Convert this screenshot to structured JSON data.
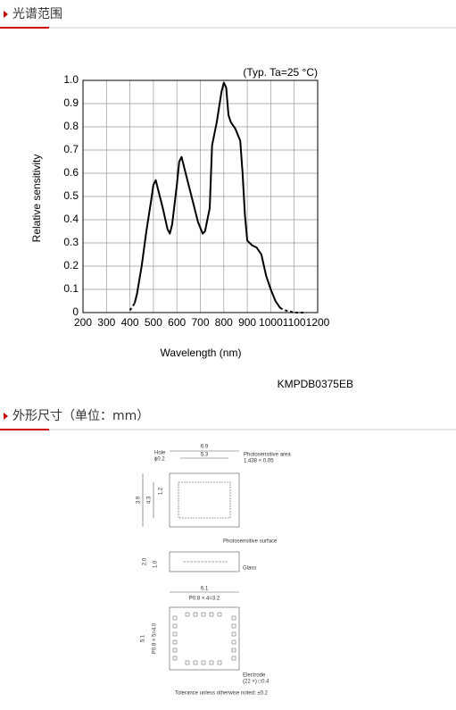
{
  "sections": [
    {
      "title": "光谱范围"
    },
    {
      "title": "外形尺寸（单位：mm）"
    }
  ],
  "chart_data": {
    "type": "line",
    "annotation": "(Typ. Ta=25 °C)",
    "x_label": "Wavelength (nm)",
    "y_label": "Relative sensitivity",
    "code": "KMPDB0375EB",
    "x": [
      400,
      420,
      430,
      450,
      470,
      490,
      500,
      510,
      520,
      540,
      560,
      570,
      580,
      600,
      610,
      620,
      630,
      650,
      670,
      690,
      710,
      720,
      740,
      750,
      770,
      790,
      800,
      810,
      820,
      830,
      850,
      870,
      880,
      890,
      900,
      920,
      940,
      960,
      980,
      1000,
      1020,
      1040,
      1060,
      1080,
      1100,
      1150
    ],
    "series": [
      {
        "color": "#000000",
        "style": "solid",
        "values": [
          null,
          0.04,
          0.08,
          0.2,
          0.35,
          0.48,
          0.55,
          0.57,
          0.53,
          0.45,
          0.36,
          0.34,
          0.38,
          0.55,
          0.65,
          0.67,
          0.63,
          0.55,
          0.47,
          0.39,
          0.34,
          0.35,
          0.45,
          0.72,
          0.82,
          0.95,
          0.99,
          0.97,
          0.85,
          0.82,
          0.79,
          0.74,
          0.6,
          0.42,
          0.31,
          0.29,
          0.28,
          0.25,
          0.16,
          0.1,
          0.05,
          0.02,
          null,
          null,
          null,
          null
        ]
      },
      {
        "color": "#000000",
        "style": "dashed",
        "values": [
          0.01,
          0.04,
          null,
          null,
          null,
          null,
          null,
          null,
          null,
          null,
          null,
          null,
          null,
          null,
          null,
          null,
          null,
          null,
          null,
          null,
          null,
          null,
          null,
          null,
          null,
          null,
          null,
          null,
          null,
          null,
          null,
          null,
          null,
          null,
          null,
          null,
          null,
          null,
          null,
          null,
          null,
          0.02,
          0.01,
          0.005,
          0,
          0
        ]
      }
    ],
    "xlim": [
      200,
      1200
    ],
    "ylim": [
      0,
      1
    ],
    "xticks": [
      200,
      300,
      400,
      500,
      600,
      700,
      800,
      900,
      1000,
      1100,
      1200
    ],
    "yticks": [
      0,
      0.1,
      0.2,
      0.3,
      0.4,
      0.5,
      0.6,
      0.7,
      0.8,
      0.9,
      {
        "value": 1,
        "label": "1.0"
      }
    ],
    "grid": true
  },
  "drawing": {
    "top_width": "6.9",
    "area_width": "5.3",
    "hole": "Hole",
    "hole_dia": "ϕ0.2",
    "area_label": "Photosensitive area",
    "area_size": "1.438 × 0.05",
    "height_outer": "3.9",
    "height_inner": "4.3",
    "offset": "1.2",
    "surface_label": "Photosensitive surface",
    "thickness": "2.0",
    "surface_depth": "1.0",
    "glass": "Glass",
    "bottom_width": "6.1",
    "pitch_x": "P0.8 × 4=3.2",
    "bottom_height": "5.1",
    "pitch_y": "P0.8 × 5=4.0",
    "electrode": "Electrode",
    "electrode_size": "(22 ×) □0.4",
    "tolerance": "Tolerance unless otherwise noted: ±0.2"
  }
}
